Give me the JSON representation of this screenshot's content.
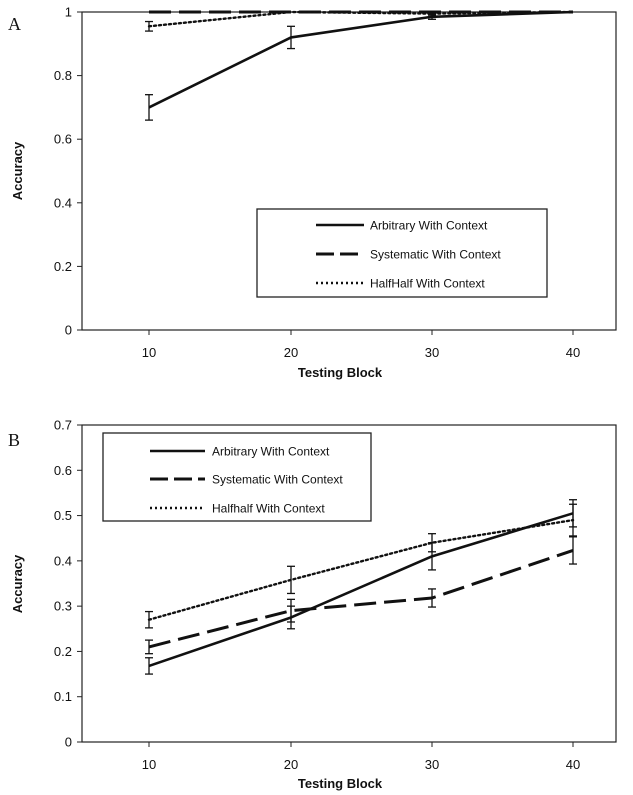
{
  "chart_data": [
    {
      "type": "line",
      "panel_label": "A",
      "xlabel": "Testing Block",
      "ylabel": "Accuracy",
      "categories": [
        10,
        20,
        30,
        40
      ],
      "ylim": [
        0,
        1
      ],
      "yticks": [
        "0",
        "0.2",
        "0.4",
        "0.6",
        "0.8",
        "1"
      ],
      "legend_position": "lower-right",
      "series": [
        {
          "name": "Arbitrary With Context",
          "style": "solid",
          "values": [
            0.7,
            0.92,
            0.985,
            1.0
          ],
          "errors": [
            0.04,
            0.035,
            0.008,
            0.0
          ]
        },
        {
          "name": "Systematic With Context",
          "style": "dashed",
          "values": [
            1.0,
            1.0,
            1.0,
            1.0
          ],
          "errors": [
            0,
            0,
            0,
            0
          ]
        },
        {
          "name": "HalfHalf With Context",
          "style": "dotted",
          "values": [
            0.955,
            1.0,
            0.995,
            1.0
          ],
          "errors": [
            0.015,
            0,
            0.005,
            0
          ]
        }
      ]
    },
    {
      "type": "line",
      "panel_label": "B",
      "xlabel": "Testing Block",
      "ylabel": "Accuracy",
      "categories": [
        10,
        20,
        30,
        40
      ],
      "ylim": [
        0,
        0.7
      ],
      "yticks": [
        "0",
        "0.1",
        "0.2",
        "0.3",
        "0.4",
        "0.5",
        "0.6",
        "0.7"
      ],
      "legend_position": "top-left",
      "series": [
        {
          "name": "Arbitrary With Context",
          "style": "solid",
          "values": [
            0.168,
            0.275,
            0.41,
            0.505
          ],
          "errors": [
            0.018,
            0.025,
            0.03,
            0.03
          ]
        },
        {
          "name": "Systematic With Context",
          "style": "dashed",
          "values": [
            0.21,
            0.29,
            0.318,
            0.423
          ],
          "errors": [
            0.015,
            0.025,
            0.02,
            0.03
          ]
        },
        {
          "name": "Halfhalf With Context",
          "style": "dotted",
          "values": [
            0.27,
            0.358,
            0.44,
            0.49
          ],
          "errors": [
            0.018,
            0.03,
            0.02,
            0.035
          ]
        }
      ]
    }
  ]
}
